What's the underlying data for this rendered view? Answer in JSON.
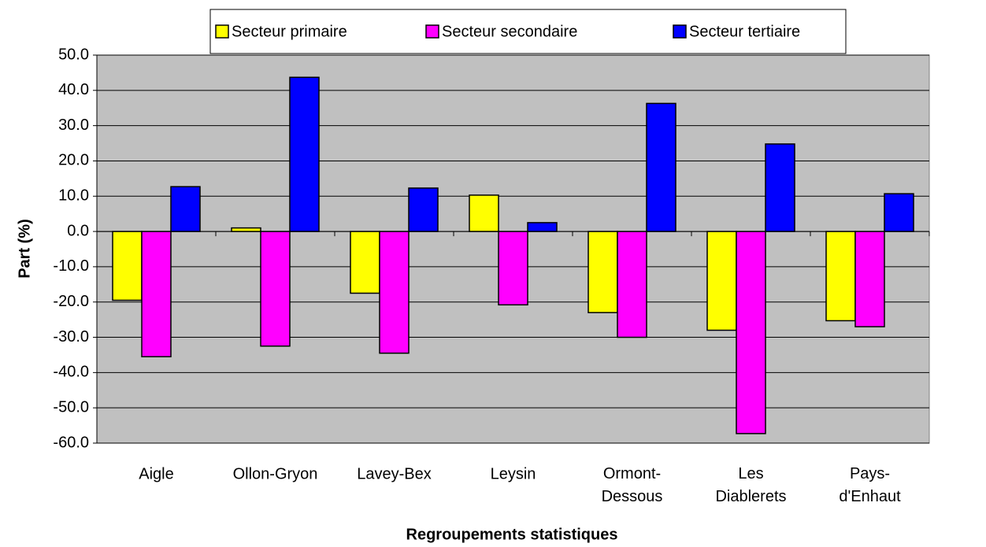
{
  "chart_data": {
    "type": "bar",
    "x_label": "Regroupements statistiques",
    "y_label": "Part (%)",
    "categories": [
      "Aigle",
      "Ollon-Gryon",
      "Lavey-Bex",
      "Leysin",
      "Ormont-Dessous",
      "Les Diablerets",
      "Pays-d'Enhaut"
    ],
    "series": [
      {
        "name": "Secteur primaire",
        "color": "#ffff00",
        "values": [
          -19.5,
          1.0,
          -17.5,
          10.3,
          -23.0,
          -28.0,
          -25.3
        ]
      },
      {
        "name": "Secteur secondaire",
        "color": "#ff00ff",
        "values": [
          -35.5,
          -32.5,
          -34.5,
          -20.8,
          -30.0,
          -57.3,
          -27.0
        ]
      },
      {
        "name": "Secteur tertiaire",
        "color": "#0000ff",
        "values": [
          12.7,
          43.7,
          12.3,
          2.5,
          36.3,
          24.8,
          10.7
        ]
      }
    ],
    "ylim": [
      -60,
      50
    ],
    "yticks": [
      {
        "value": -60,
        "label": "-60.0"
      },
      {
        "value": -50,
        "label": "-50.0"
      },
      {
        "value": -40,
        "label": "-40.0"
      },
      {
        "value": -30,
        "label": "-30.0"
      },
      {
        "value": -20,
        "label": "-20.0"
      },
      {
        "value": -10,
        "label": "-10.0"
      },
      {
        "value": 0,
        "label": "0.0"
      },
      {
        "value": 10,
        "label": "10.0"
      },
      {
        "value": 20,
        "label": "20.0"
      },
      {
        "value": 30,
        "label": "30.0"
      },
      {
        "value": 40,
        "label": "40.0"
      },
      {
        "value": 50,
        "label": "50.0"
      }
    ],
    "grid": true,
    "legend": "top"
  }
}
